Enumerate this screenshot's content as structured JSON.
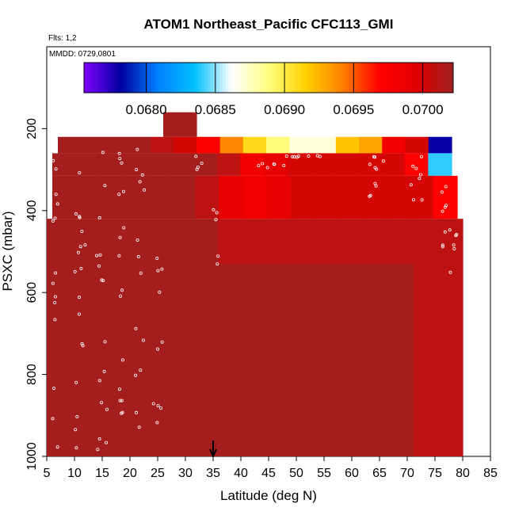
{
  "chart_data": {
    "type": "heatmap",
    "title": "ATOM1 Northeast_Pacific CFC113_GMI",
    "flights_note": "Flts: 1,2",
    "date_note": "MMDD: 0729,0801",
    "xlabel": "Latitude (deg N)",
    "ylabel": "PSXC (mbar)",
    "xlim": [
      5,
      85
    ],
    "ylim": [
      1000,
      0
    ],
    "x_ticks": [
      "5",
      "10",
      "15",
      "20",
      "25",
      "30",
      "35",
      "40",
      "45",
      "50",
      "55",
      "60",
      "65",
      "70",
      "75",
      "80",
      "85"
    ],
    "y_ticks": [
      "200",
      "400",
      "600",
      "800",
      "1000"
    ],
    "colorbar": {
      "range": [
        0.06755,
        0.07022
      ],
      "ticks": [
        "0.0680",
        "0.0685",
        "0.0690",
        "0.0695",
        "0.0700"
      ],
      "colors": [
        "#8000ff",
        "#0000a0",
        "#0080ff",
        "#00c0ff",
        "#ffffff",
        "#ffff80",
        "#ffd000",
        "#ff8000",
        "#ff0000",
        "#e00000",
        "#a02020"
      ]
    },
    "layers": [
      {
        "p": [
          160,
          220
        ],
        "lat": [
          26,
          32
        ],
        "values": [
          0.0702
        ]
      },
      {
        "p": [
          220,
          260
        ],
        "lat": [
          7,
          78
        ],
        "values": [
          0.0702,
          0.0702,
          0.0702,
          0.0702,
          0.0701,
          0.07,
          0.0697,
          0.0694,
          0.0691,
          0.0689,
          0.0687,
          0.0687,
          0.0692,
          0.0693,
          0.0698,
          0.07,
          0.0678
        ]
      },
      {
        "p": [
          260,
          315
        ],
        "lat": [
          6,
          78
        ],
        "values": [
          0.0702,
          0.0702,
          0.0702,
          0.0702,
          0.0702,
          0.0702,
          0.0702,
          0.0701,
          0.0698,
          0.0699,
          0.07,
          0.07,
          0.07,
          0.07,
          0.07,
          0.0697,
          0.0684
        ]
      },
      {
        "p": [
          315,
          420
        ],
        "lat": [
          6,
          79
        ],
        "values": [
          0.0702,
          0.0702,
          0.0702,
          0.0702,
          0.0702,
          0.0702,
          0.0701,
          0.0699,
          0.0698,
          0.0699,
          0.07,
          0.07,
          0.07,
          0.07,
          0.07,
          0.07,
          0.0697
        ]
      },
      {
        "p": [
          420,
          530
        ],
        "lat": [
          5,
          80
        ],
        "values": [
          0.0702,
          0.0702,
          0.0702,
          0.0702,
          0.0702,
          0.0702,
          0.0702,
          0.0701,
          0.0701,
          0.0701,
          0.0701,
          0.0701,
          0.0701,
          0.0701,
          0.0701,
          0.0701,
          0.0701
        ]
      },
      {
        "p": [
          530,
          1000
        ],
        "lat": [
          5,
          80
        ],
        "values": [
          0.0702,
          0.0702,
          0.0702,
          0.0702,
          0.0702,
          0.0702,
          0.0702,
          0.0702,
          0.0702,
          0.0702,
          0.0702,
          0.0702,
          0.0702,
          0.0702,
          0.0702,
          0.0701,
          0.0701
        ]
      }
    ],
    "marker_latitude": 35
  }
}
